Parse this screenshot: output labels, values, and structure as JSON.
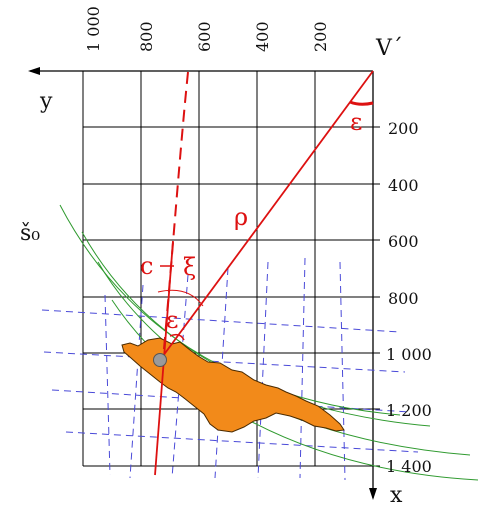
{
  "diagram": {
    "top_ticks": [
      "1 000",
      "800",
      "600",
      "400",
      "200"
    ],
    "right_ticks": [
      "200",
      "400",
      "600",
      "800",
      "1 000",
      "1 200",
      "1 400"
    ],
    "origin_label": "V´",
    "y_axis_label": "y",
    "x_axis_label": "x",
    "s0_label": "š₀",
    "rho_label": "ρ",
    "c_label": "c",
    "xi_label": "ξ",
    "epsilon_label": "ε",
    "colors": {
      "grid": "#000000",
      "red": "#dd1111",
      "parallels": "#2f9a2f",
      "meridians_grid": "#4a4ad8",
      "territory": "#f28a1a",
      "territory_outline": "#4a2a00",
      "point": "#9a9a9a"
    }
  }
}
